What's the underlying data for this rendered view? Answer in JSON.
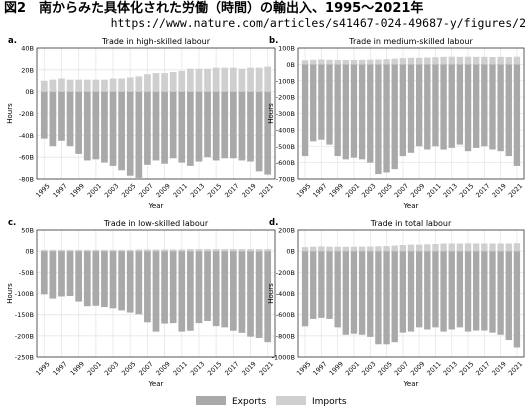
{
  "header": {
    "title": "図2　南からみた具体化された労働（時間）の輸出入、1995〜2021年",
    "url": "https://www.nature.com/articles/s41467-024-49687-y/figures/2"
  },
  "colors": {
    "exports": "#a9a9a9",
    "imports": "#cfcfcf",
    "grid": "#e6e6e6"
  },
  "legend": {
    "exports": "Exports",
    "imports": "Imports"
  },
  "chart_data": [
    {
      "panel_label": "a.",
      "type": "bar",
      "title": "Trade in high-skilled labour",
      "xlabel": "Year",
      "ylabel": "Hours",
      "ylim": [
        -80,
        40
      ],
      "ytick_values": [
        40,
        20,
        0,
        -20,
        -40,
        -60,
        -80
      ],
      "ytick_labels": [
        "40B",
        "20B",
        "0B",
        "-20B",
        "-40B",
        "-60B",
        "-80B"
      ],
      "x": [
        1995,
        1996,
        1997,
        1998,
        1999,
        2000,
        2001,
        2002,
        2003,
        2004,
        2005,
        2006,
        2007,
        2008,
        2009,
        2010,
        2011,
        2012,
        2013,
        2014,
        2015,
        2016,
        2017,
        2018,
        2019,
        2020,
        2021
      ],
      "xtick_labels": [
        "1995",
        "1997",
        "1999",
        "2001",
        "2003",
        "2005",
        "2007",
        "2009",
        "2011",
        "2013",
        "2015",
        "2017",
        "2019",
        "2021"
      ],
      "series": [
        {
          "name": "Exports",
          "values": [
            -43,
            -50,
            -45,
            -50,
            -57,
            -63,
            -62,
            -65,
            -68,
            -72,
            -77,
            -79,
            -67,
            -63,
            -66,
            -61,
            -65,
            -68,
            -64,
            -60,
            -63,
            -61,
            -61,
            -63,
            -64,
            -73,
            -76
          ]
        },
        {
          "name": "Imports",
          "values": [
            10,
            11,
            12,
            11,
            11,
            11,
            11,
            11,
            12,
            12,
            13,
            14,
            16,
            17,
            17,
            18,
            19,
            21,
            21,
            21,
            22,
            22,
            22,
            21,
            22,
            22,
            23
          ]
        }
      ]
    },
    {
      "panel_label": "b.",
      "type": "bar",
      "title": "Trade in medium-skilled labour",
      "xlabel": "Year",
      "ylabel": "Hours",
      "ylim": [
        -700,
        100
      ],
      "ytick_values": [
        100,
        0,
        -100,
        -200,
        -300,
        -400,
        -500,
        -600,
        -700
      ],
      "ytick_labels": [
        "100B",
        "0B",
        "-100B",
        "-200B",
        "-300B",
        "-400B",
        "-500B",
        "-600B",
        "-700B"
      ],
      "x": [
        1995,
        1996,
        1997,
        1998,
        1999,
        2000,
        2001,
        2002,
        2003,
        2004,
        2005,
        2006,
        2007,
        2008,
        2009,
        2010,
        2011,
        2012,
        2013,
        2014,
        2015,
        2016,
        2017,
        2018,
        2019,
        2020,
        2021
      ],
      "xtick_labels": [
        "1995",
        "1997",
        "1999",
        "2001",
        "2003",
        "2005",
        "2007",
        "2009",
        "2011",
        "2013",
        "2015",
        "2017",
        "2019",
        "2021"
      ],
      "series": [
        {
          "name": "Exports",
          "values": [
            -560,
            -470,
            -460,
            -490,
            -560,
            -580,
            -570,
            -580,
            -600,
            -670,
            -660,
            -640,
            -560,
            -540,
            -500,
            -520,
            -500,
            -520,
            -510,
            -490,
            -530,
            -510,
            -500,
            -520,
            -530,
            -560,
            -620
          ]
        },
        {
          "name": "Imports",
          "values": [
            25,
            28,
            30,
            28,
            27,
            27,
            27,
            28,
            29,
            30,
            32,
            35,
            38,
            40,
            40,
            42,
            44,
            46,
            47,
            46,
            47,
            46,
            46,
            45,
            46,
            45,
            47
          ]
        }
      ]
    },
    {
      "panel_label": "c.",
      "type": "bar",
      "title": "Trade in low-skilled labour",
      "xlabel": "Year",
      "ylabel": "Hours",
      "ylim": [
        -250,
        50
      ],
      "ytick_values": [
        50,
        0,
        -50,
        -100,
        -150,
        -200,
        -250
      ],
      "ytick_labels": [
        "50B",
        "0B",
        "-50B",
        "-100B",
        "-150B",
        "-200B",
        "-250B"
      ],
      "x": [
        1995,
        1996,
        1997,
        1998,
        1999,
        2000,
        2001,
        2002,
        2003,
        2004,
        2005,
        2006,
        2007,
        2008,
        2009,
        2010,
        2011,
        2012,
        2013,
        2014,
        2015,
        2016,
        2017,
        2018,
        2019,
        2020,
        2021
      ],
      "xtick_labels": [
        "1995",
        "1997",
        "1999",
        "2001",
        "2003",
        "2005",
        "2007",
        "2009",
        "2011",
        "2013",
        "2015",
        "2017",
        "2019",
        "2021"
      ],
      "series": [
        {
          "name": "Exports",
          "values": [
            -102,
            -112,
            -107,
            -106,
            -119,
            -130,
            -129,
            -132,
            -135,
            -140,
            -145,
            -149,
            -168,
            -190,
            -171,
            -170,
            -190,
            -188,
            -170,
            -165,
            -177,
            -180,
            -188,
            -193,
            -202,
            -205,
            -215
          ]
        },
        {
          "name": "Imports",
          "values": [
            3,
            3,
            3,
            3,
            3,
            3,
            3,
            3,
            3,
            3,
            3,
            4,
            4,
            4,
            4,
            4,
            4,
            5,
            5,
            5,
            5,
            5,
            5,
            5,
            5,
            5,
            5
          ]
        }
      ]
    },
    {
      "panel_label": "d.",
      "type": "bar",
      "title": "Trade in total labour",
      "xlabel": "Year",
      "ylabel": "Hours",
      "ylim": [
        -1000,
        200
      ],
      "ytick_values": [
        200,
        0,
        -200,
        -400,
        -600,
        -800,
        -1000
      ],
      "ytick_labels": [
        "200B",
        "0B",
        "-200B",
        "-400B",
        "-600B",
        "-800B",
        "-1000B"
      ],
      "x": [
        1995,
        1996,
        1997,
        1998,
        1999,
        2000,
        2001,
        2002,
        2003,
        2004,
        2005,
        2006,
        2007,
        2008,
        2009,
        2010,
        2011,
        2012,
        2013,
        2014,
        2015,
        2016,
        2017,
        2018,
        2019,
        2020,
        2021
      ],
      "xtick_labels": [
        "1995",
        "1997",
        "1999",
        "2001",
        "2003",
        "2005",
        "2007",
        "2009",
        "2011",
        "2013",
        "2015",
        "2017",
        "2019",
        "2021"
      ],
      "series": [
        {
          "name": "Exports",
          "values": [
            -710,
            -640,
            -630,
            -640,
            -720,
            -790,
            -780,
            -790,
            -810,
            -880,
            -880,
            -860,
            -770,
            -760,
            -720,
            -740,
            -720,
            -760,
            -740,
            -720,
            -760,
            -750,
            -750,
            -770,
            -790,
            -840,
            -910
          ]
        },
        {
          "name": "Imports",
          "values": [
            38,
            42,
            45,
            42,
            42,
            42,
            42,
            43,
            44,
            46,
            48,
            53,
            58,
            62,
            62,
            65,
            68,
            72,
            73,
            72,
            74,
            73,
            73,
            72,
            73,
            72,
            75
          ]
        }
      ]
    }
  ]
}
